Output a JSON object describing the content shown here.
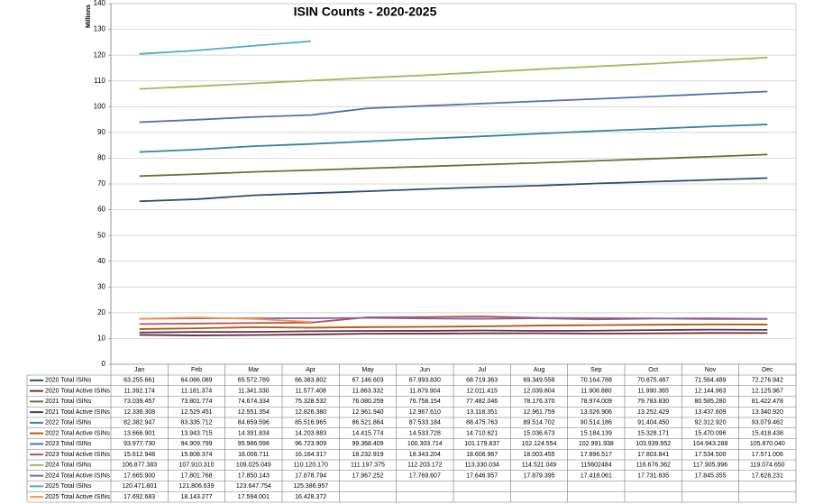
{
  "chart_data": {
    "type": "line",
    "title": "ISIN Counts  -  2020-2025",
    "y_label": "Millions",
    "categories": [
      "Jan",
      "Feb",
      "Mar",
      "Apr",
      "May",
      "Jun",
      "Jul",
      "Aug",
      "Sep",
      "Oct",
      "Nov",
      "Dec"
    ],
    "ylim": [
      0,
      140
    ],
    "yticks": [
      0,
      10,
      20,
      30,
      40,
      50,
      60,
      70,
      80,
      90,
      100,
      110,
      120,
      130,
      140
    ],
    "grid": true,
    "series": [
      {
        "name": "2020 Total ISINs",
        "color": "#2c4d75",
        "values": [
          63.255661,
          64.066089,
          65.572789,
          66.383802,
          67.146603,
          67.99383,
          68.719363,
          69.349558,
          70.164788,
          70.875487,
          71.564489,
          72.276942
        ],
        "value_labels": [
          "63.255.661",
          "64.066.089",
          "65.572.789",
          "66.383.802",
          "67.146.603",
          "67.993.830",
          "68.719.363",
          "69.349.558",
          "70.164.788",
          "70.875.487",
          "71.564.489",
          "72.276.942"
        ]
      },
      {
        "name": "2020 Total Active ISINs",
        "color": "#772c2a",
        "values": [
          11.392174,
          11.181374,
          11.34133,
          11.577408,
          11.863332,
          11.879904,
          12.011415,
          12.039804,
          11.90888,
          11.990365,
          12.144963,
          12.125967
        ],
        "value_labels": [
          "11.392.174",
          "11.181.374",
          "11.341.330",
          "11.577.408",
          "11.863.332",
          "11.879.904",
          "12.011.415",
          "12.039.804",
          "11.908.880",
          "11.990.365",
          "12.144.963",
          "12.125.967"
        ]
      },
      {
        "name": "2021 Total ISINs",
        "color": "#5f7530",
        "values": [
          73.039457,
          73.801774,
          74.674334,
          75.328532,
          76.080259,
          76.758154,
          77.482046,
          78.17637,
          78.974009,
          79.78383,
          80.58528,
          81.422478
        ],
        "value_labels": [
          "73.039.457",
          "73.801.774",
          "74.674.334",
          "75.328.532",
          "76.080.259",
          "76.758.154",
          "77.482.046",
          "78.176.370",
          "78.974.009",
          "79.783.830",
          "80.585.280",
          "81.422.478"
        ]
      },
      {
        "name": "2021 Total Active ISINs",
        "color": "#4d3b62",
        "values": [
          12.336308,
          12.529451,
          12.551354,
          12.82638,
          12.96194,
          12.96761,
          13.118351,
          12.961759,
          13.026906,
          13.252429,
          13.437609,
          13.34092
        ],
        "value_labels": [
          "12.336.308",
          "12.529.451",
          "12.551.354",
          "12.826.380",
          "12.961.940",
          "12.967.610",
          "13.118.351",
          "12.961.759",
          "13.026.906",
          "13.252.429",
          "13.437.609",
          "13.340.920"
        ]
      },
      {
        "name": "2022 Total ISINs",
        "color": "#31859c",
        "values": [
          82.382947,
          83.335712,
          84.659596,
          85.516965,
          86.521864,
          87.533184,
          88.475763,
          89.514702,
          90.514186,
          91.40445,
          92.31292,
          93.079462
        ],
        "value_labels": [
          "82.382.947",
          "83.335.712",
          "84.659.596",
          "85.516.965",
          "86.521.864",
          "87.533.184",
          "88.475.763",
          "89.514.702",
          "90.514.186",
          "91.404.450",
          "92.312.920",
          "93.079.462"
        ]
      },
      {
        "name": "2022 Total Active ISINs",
        "color": "#b65708",
        "values": [
          13.666901,
          13.943715,
          14.391834,
          14.203883,
          14.415774,
          14.533728,
          14.710621,
          15.036673,
          15.184139,
          15.328171,
          15.470096,
          15.418438
        ],
        "value_labels": [
          "13.666.901",
          "13.943.715",
          "14.391.834",
          "14.203.883",
          "14.415.774",
          "14.533.728",
          "14.710.621",
          "15.036.673",
          "15.184.139",
          "15.328.171",
          "15.470.096",
          "15.418.438"
        ]
      },
      {
        "name": "2023 Total ISINs",
        "color": "#4a72b0",
        "values": [
          93.97773,
          94.909799,
          95.986598,
          96.723909,
          99.368409,
          100.303714,
          101.179837,
          102.124554,
          102.991938,
          103.939952,
          104.943288,
          105.87004
        ],
        "value_labels": [
          "93.977.730",
          "94.909.799",
          "95.986.598",
          "96.723.909",
          "99.368.409",
          "100.303.714",
          "101.179.837",
          "102.124.554",
          "102.991.938",
          "103.939.952",
          "104.943.288",
          "105.870.040"
        ]
      },
      {
        "name": "2023 Total Active ISINs",
        "color": "#c0504d",
        "values": [
          15.612948,
          15.808374,
          16.006711,
          16.164317,
          18.232919,
          18.343204,
          18.606967,
          18.003455,
          17.896517,
          17.803841,
          17.5345,
          17.571006
        ],
        "value_labels": [
          "15.612.948",
          "15.808.374",
          "16.006.711",
          "16.164.317",
          "18.232.919",
          "18.343.204",
          "18.606.967",
          "18.003.455",
          "17.896.517",
          "17.803.841",
          "17.534.500",
          "17.571.006"
        ]
      },
      {
        "name": "2024 Total ISINs",
        "color": "#9bbb59",
        "values": [
          106.877383,
          107.91031,
          109.025049,
          110.12017,
          111.197375,
          112.203172,
          113.330034,
          114.521049,
          115.602484,
          116.676362,
          117.905996,
          119.07465
        ],
        "value_labels": [
          "106.877.383",
          "107.910.310",
          "109.025.049",
          "110.120.170",
          "111.197.375",
          "112.203.172",
          "113.330.034",
          "114.521.049",
          "115602484",
          "116.676.362",
          "117.905.996",
          "119.074.650"
        ]
      },
      {
        "name": "2024 Total Active ISINs",
        "color": "#8064a2",
        "values": [
          17.6659,
          17.801768,
          17.850143,
          17.878794,
          17.967252,
          17.769607,
          17.646957,
          17.879395,
          17.418061,
          17.731835,
          17.845355,
          17.628231
        ],
        "value_labels": [
          "17.665.900",
          "17.801.768",
          "17.850.143",
          "17.878.794",
          "17.967.252",
          "17.769.607",
          "17.646.957",
          "17.879.395",
          "17.418.061",
          "17.731.835",
          "17.845.355",
          "17.628.231"
        ]
      },
      {
        "name": "2025 Total ISINs",
        "color": "#4bacc6",
        "values": [
          120.471801,
          121.806639,
          123.647754,
          125.386957,
          null,
          null,
          null,
          null,
          null,
          null,
          null,
          null
        ],
        "value_labels": [
          "120.471.801",
          "121.806.639",
          "123.647.754",
          "125.386.957",
          null,
          null,
          null,
          null,
          null,
          null,
          null,
          null
        ]
      },
      {
        "name": "2025 Total Active ISINs",
        "color": "#f79646",
        "values": [
          17.692683,
          18.143277,
          17.594001,
          16.428372,
          null,
          null,
          null,
          null,
          null,
          null,
          null,
          null
        ],
        "value_labels": [
          "17.692.683",
          "18.143.277",
          "17.594.001",
          "16.428.372",
          null,
          null,
          null,
          null,
          null,
          null,
          null,
          null
        ]
      }
    ]
  }
}
